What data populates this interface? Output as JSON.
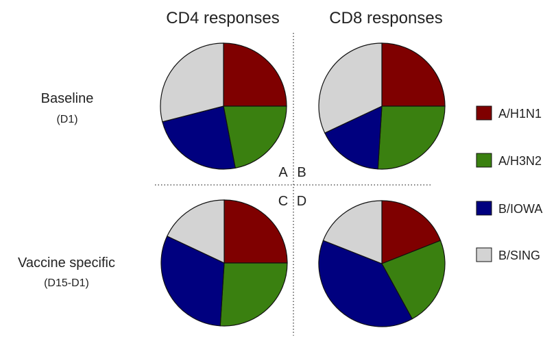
{
  "chart_data": {
    "type": "pie",
    "column_headers": [
      "CD4 responses",
      "CD8 responses"
    ],
    "row_labels": [
      {
        "title": "Baseline",
        "sub": "(D1)"
      },
      {
        "title": "Vaccine specific",
        "sub": "(D15-D1)"
      }
    ],
    "categories": [
      "A/H1N1",
      "A/H3N2",
      "B/IOWA",
      "B/SING"
    ],
    "colors": [
      "#7f0000",
      "#3a8010",
      "#00007f",
      "#d3d3d3"
    ],
    "panels": [
      {
        "label": "A",
        "row": 0,
        "col": 0,
        "values": [
          25,
          22,
          24,
          29
        ]
      },
      {
        "label": "B",
        "row": 0,
        "col": 1,
        "values": [
          25,
          26,
          17,
          32
        ]
      },
      {
        "label": "C",
        "row": 1,
        "col": 0,
        "values": [
          25,
          26,
          31,
          18
        ]
      },
      {
        "label": "D",
        "row": 1,
        "col": 1,
        "values": [
          19,
          23,
          39,
          19
        ]
      }
    ],
    "legend": {
      "position": "right"
    }
  }
}
